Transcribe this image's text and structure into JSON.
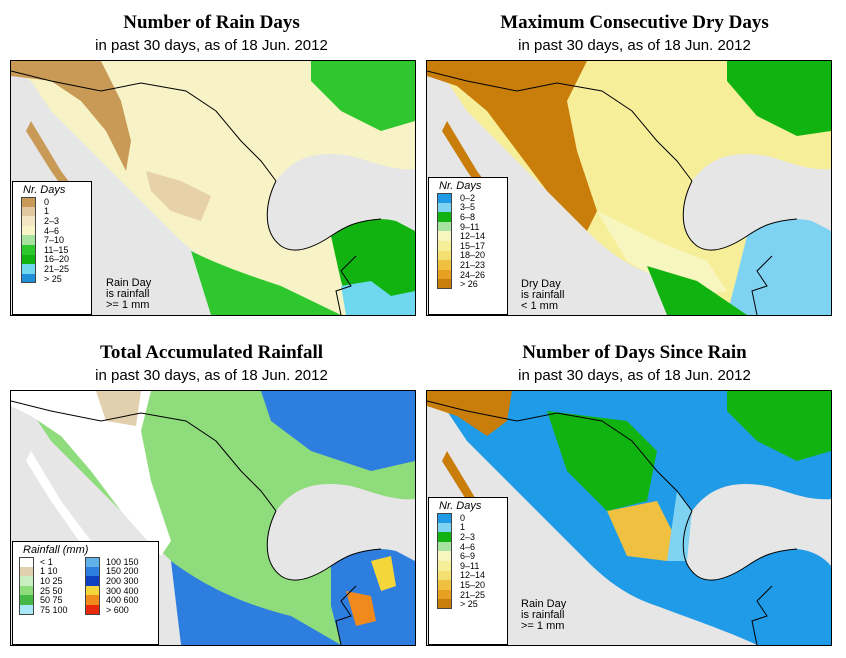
{
  "panels": [
    {
      "title": "Number of Rain Days",
      "subtitle": "in past 30 days, as of  18 Jun. 2012",
      "legend_title": "Nr. Days",
      "classes": [
        {
          "label": "0",
          "color": "#c89a55"
        },
        {
          "label": "1",
          "color": "#e2c8a0"
        },
        {
          "label": "2–3",
          "color": "#f3e6c4"
        },
        {
          "label": "4–6",
          "color": "#f8f6c8"
        },
        {
          "label": "7–10",
          "color": "#a6e3a0"
        },
        {
          "label": "11–15",
          "color": "#2ec82e"
        },
        {
          "label": "16–20",
          "color": "#11b311"
        },
        {
          "label": "21–25",
          "color": "#6fd8f0"
        },
        {
          "label": "> 25",
          "color": "#1f8fd8"
        }
      ],
      "note": [
        "Rain Day",
        "is rainfall",
        ">= 1 mm"
      ]
    },
    {
      "title": "Maximum Consecutive Dry Days",
      "subtitle": "in past 30 days, as of  18 Jun. 2012",
      "legend_title": "Nr. Days",
      "classes": [
        {
          "label": "0–2",
          "color": "#1f9be8"
        },
        {
          "label": "3–5",
          "color": "#7fd3f2"
        },
        {
          "label": "6–8",
          "color": "#11b311"
        },
        {
          "label": "9–11",
          "color": "#a6e3a0"
        },
        {
          "label": "12–14",
          "color": "#f8f6c0"
        },
        {
          "label": "15–17",
          "color": "#f7ee9a"
        },
        {
          "label": "18–20",
          "color": "#f4e070"
        },
        {
          "label": "21–23",
          "color": "#f0c040"
        },
        {
          "label": "24–26",
          "color": "#e8a020"
        },
        {
          "label": "> 26",
          "color": "#c97d0a"
        }
      ],
      "note": [
        "Dry Day",
        "is rainfall",
        "< 1 mm"
      ]
    },
    {
      "title": "Total Accumulated Rainfall",
      "subtitle": "in past 30 days, as of  18 Jun. 2012",
      "legend_title": "Rainfall (mm)",
      "classes": [
        {
          "label": "< 1",
          "color": "#ffffff"
        },
        {
          "label": "1     10",
          "color": "#e2cfae"
        },
        {
          "label": "10     25",
          "color": "#c9eec0"
        },
        {
          "label": "25     50",
          "color": "#8fdc7c"
        },
        {
          "label": "50     75",
          "color": "#45b845"
        },
        {
          "label": "75   100",
          "color": "#a8e8f6"
        },
        {
          "label": "100   150",
          "color": "#5fb3ea"
        },
        {
          "label": "150   200",
          "color": "#2e7ee0"
        },
        {
          "label": "200   300",
          "color": "#0d3fbe"
        },
        {
          "label": "300   400",
          "color": "#f5d63a"
        },
        {
          "label": "400   600",
          "color": "#f08a1c"
        },
        {
          "label": "> 600",
          "color": "#e82a0a"
        }
      ]
    },
    {
      "title": "Number of Days Since Rain",
      "subtitle": "in past 30 days, as of  18 Jun. 2012",
      "legend_title": "Nr. Days",
      "classes": [
        {
          "label": "0",
          "color": "#1f9be8"
        },
        {
          "label": "1",
          "color": "#7fd3f2"
        },
        {
          "label": "2–3",
          "color": "#11b311"
        },
        {
          "label": "4–6",
          "color": "#a6e3a0"
        },
        {
          "label": "6–9",
          "color": "#f8f6c0"
        },
        {
          "label": "9–11",
          "color": "#f7ee9a"
        },
        {
          "label": "12–14",
          "color": "#f4e070"
        },
        {
          "label": "15–20",
          "color": "#f0c040"
        },
        {
          "label": "21–25",
          "color": "#e8a020"
        },
        {
          "label": "> 25",
          "color": "#c97d0a"
        }
      ],
      "note": [
        "Rain Day",
        "is rainfall",
        ">= 1 mm"
      ]
    }
  ],
  "colors": {
    "water": "#e6e6e6",
    "border": "#000000"
  }
}
